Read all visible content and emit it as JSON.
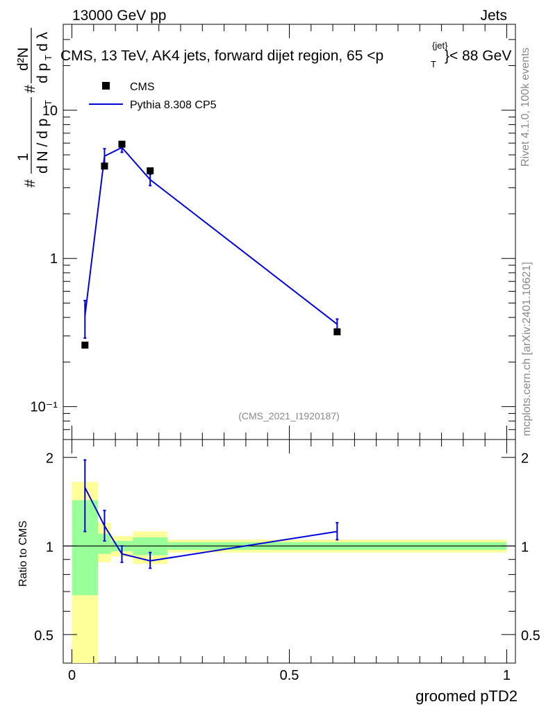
{
  "header": {
    "left": "13000 GeV pp",
    "right": "Jets"
  },
  "side_labels": {
    "rivet": "Rivet 4.1.0,  100k events",
    "mcplots": "mcplots.cern.ch [arXiv:2401.10621]"
  },
  "chart_data": [
    {
      "type": "scatter",
      "title": "CMS, 13 TeV, AK4 jets, forward dijet region, 65 <p_T^{jet}< 88 GeV",
      "title_parts": {
        "pre": "CMS, 13 TeV, AK4 jets, forward dijet region, 65 <p",
        "sup": "{jet}",
        "sub": "T",
        "post": "}< 88 GeV"
      },
      "ylabel": {
        "num": "1",
        "den": "d N / d p",
        "den_sub": "T",
        "d2n": "d²N",
        "d2n_den": "d p",
        "d2n_den_tail": "d λ",
        "hash": "#"
      },
      "watermark": "(CMS_2021_I1920187)",
      "ylog": true,
      "ylim": [
        0.06,
        38
      ],
      "xlim": [
        -0.02,
        1.02
      ],
      "ytick_labels": [
        "10⁻¹",
        "1",
        "10"
      ],
      "ytick_values": [
        0.1,
        1,
        10
      ],
      "legend": {
        "placement": "top-left",
        "entries": [
          "CMS",
          "Pythia 8.308 CP5"
        ]
      },
      "series": [
        {
          "name": "CMS",
          "style": "markers",
          "color": "#000000",
          "x": [
            0.03,
            0.075,
            0.115,
            0.18,
            0.61
          ],
          "y": [
            0.26,
            4.2,
            5.9,
            3.9,
            0.32
          ]
        },
        {
          "name": "Pythia 8.308 CP5",
          "style": "line",
          "color": "#0000dd",
          "x": [
            0.03,
            0.075,
            0.115,
            0.18,
            0.61
          ],
          "y": [
            0.41,
            4.9,
            5.6,
            3.4,
            0.36
          ],
          "yerr_low": [
            0.29,
            4.3,
            5.2,
            3.1,
            0.33
          ],
          "yerr_high": [
            0.52,
            5.5,
            6.1,
            3.7,
            0.39
          ]
        }
      ]
    },
    {
      "type": "line",
      "ylabel": "Ratio to CMS",
      "xlabel": "groomed pTD2",
      "ylim": [
        0.4,
        2.3
      ],
      "xlim": [
        -0.02,
        1.02
      ],
      "ytick_values": [
        0.5,
        1,
        2
      ],
      "ytick_labels": [
        "0.5",
        "1",
        "2"
      ],
      "xtick_values": [
        0,
        0.5,
        1
      ],
      "xtick_labels": [
        "0",
        "0.5",
        "1"
      ],
      "bands": [
        {
          "x0": 0.0,
          "x1": 0.06,
          "yellow": [
            0.39,
            1.65
          ],
          "green": [
            0.68,
            1.43
          ]
        },
        {
          "x0": 0.06,
          "x1": 0.09,
          "yellow": [
            0.88,
            1.2
          ],
          "green": [
            0.94,
            1.1
          ]
        },
        {
          "x0": 0.09,
          "x1": 0.14,
          "yellow": [
            0.92,
            1.08
          ],
          "green": [
            0.96,
            1.04
          ]
        },
        {
          "x0": 0.14,
          "x1": 0.22,
          "yellow": [
            0.87,
            1.12
          ],
          "green": [
            0.93,
            1.07
          ]
        },
        {
          "x0": 0.22,
          "x1": 1.0,
          "yellow": [
            0.95,
            1.05
          ],
          "green": [
            0.97,
            1.03
          ]
        }
      ],
      "series": [
        {
          "name": "Pythia 8.308 CP5",
          "color": "#0000dd",
          "x": [
            0.03,
            0.075,
            0.115,
            0.18,
            0.61
          ],
          "y": [
            1.58,
            1.17,
            0.94,
            0.89,
            1.12
          ],
          "yerr_low": [
            1.12,
            1.04,
            0.88,
            0.84,
            1.05
          ],
          "yerr_high": [
            1.96,
            1.32,
            1.0,
            0.95,
            1.2
          ]
        }
      ],
      "reference_line": 1
    }
  ]
}
